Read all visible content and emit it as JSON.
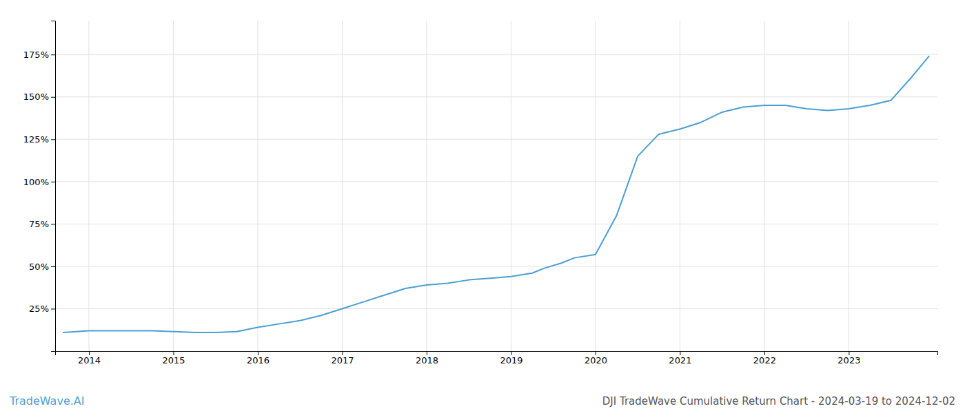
{
  "chart_data": {
    "type": "line",
    "title": "DJI TradeWave Cumulative Return Chart - 2024-03-19 to 2024-12-02",
    "annotations": [
      "TradeWave.AI"
    ],
    "color": "#4a9fd4",
    "x": [
      2013.7,
      2014.0,
      2014.25,
      2014.5,
      2014.75,
      2015.0,
      2015.25,
      2015.5,
      2015.75,
      2016.0,
      2016.25,
      2016.5,
      2016.75,
      2017.0,
      2017.25,
      2017.5,
      2017.75,
      2018.0,
      2018.25,
      2018.5,
      2018.75,
      2019.0,
      2019.25,
      2019.4,
      2019.6,
      2019.75,
      2020.0,
      2020.25,
      2020.5,
      2020.75,
      2021.0,
      2021.25,
      2021.5,
      2021.75,
      2022.0,
      2022.25,
      2022.5,
      2022.75,
      2023.0,
      2023.25,
      2023.5,
      2023.75,
      2023.95
    ],
    "values": [
      11,
      12,
      12,
      12,
      12,
      11.5,
      11,
      11,
      11.5,
      14,
      16,
      18,
      21,
      25,
      29,
      33,
      37,
      39,
      40,
      42,
      43,
      44,
      46,
      49,
      52,
      55,
      57,
      80,
      115,
      128,
      131,
      135,
      141,
      144,
      145,
      145,
      143,
      142,
      143,
      145,
      148,
      162,
      174
    ],
    "xlim": [
      2013.6,
      2024.05
    ],
    "xticks": [
      2014,
      2015,
      2016,
      2017,
      2018,
      2019,
      2020,
      2021,
      2022,
      2023
    ],
    "ylim": [
      0,
      195
    ],
    "yticks": [
      {
        "value": 25,
        "label": "25%"
      },
      {
        "value": 50,
        "label": "50%"
      },
      {
        "value": 75,
        "label": "75%"
      },
      {
        "value": 100,
        "label": "100%"
      },
      {
        "value": 125,
        "label": "125%"
      },
      {
        "value": 150,
        "label": "150%"
      },
      {
        "value": 175,
        "label": "175%"
      }
    ],
    "grid": true
  }
}
